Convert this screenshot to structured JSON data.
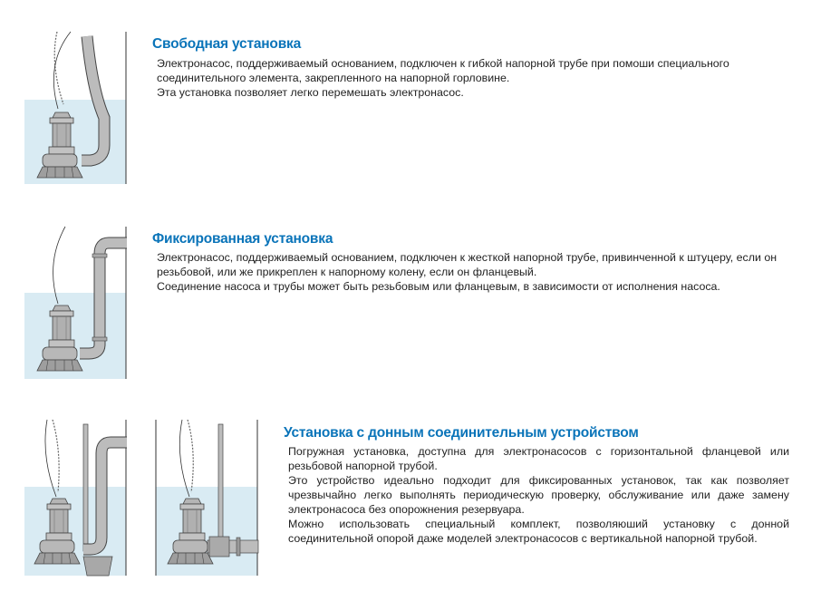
{
  "colors": {
    "accent": "#0a74b9",
    "water": "#d9ebf3",
    "metal": "#b9b9b9"
  },
  "sections": [
    {
      "title": "Свободная установка",
      "lines": [
        "Электронасос, поддерживаемый основанием, подключен к гибкой напорной трубе при помоши специального соединительного элемента, закрепленного на напорной горловине.",
        "Эта установка позволяет легко перемешать электронасос."
      ]
    },
    {
      "title": "Фиксированная установка",
      "lines": [
        "Электронасос, поддерживаемый основанием, подключен к жесткой напорной трубе, привинченной к штуцеру, если он резьбовой, или же прикреплен к напорному колену, если он фланцевый.",
        "Соединение насоса и трубы может быть резьбовым или фланцевым, в зависимости от исполнения насоса."
      ]
    },
    {
      "title": "Установка с донным соединительным устройством",
      "lines": [
        "Погружная установка, доступна для электронасосов с горизонтальной фланцевой или резьбовой напорной трубой.",
        "Это устройство идеально подходит для фиксированных установок, так как позволяет чрезвычайно легко выполнять периодическую проверку, обслуживание или даже замену электронасоса без опорожнения резервуара.",
        "Можно использовать специальный комплект, позволяюший установку с донной соединительной опорой даже моделей электронасосов с вертикальной напорной трубой."
      ]
    }
  ]
}
